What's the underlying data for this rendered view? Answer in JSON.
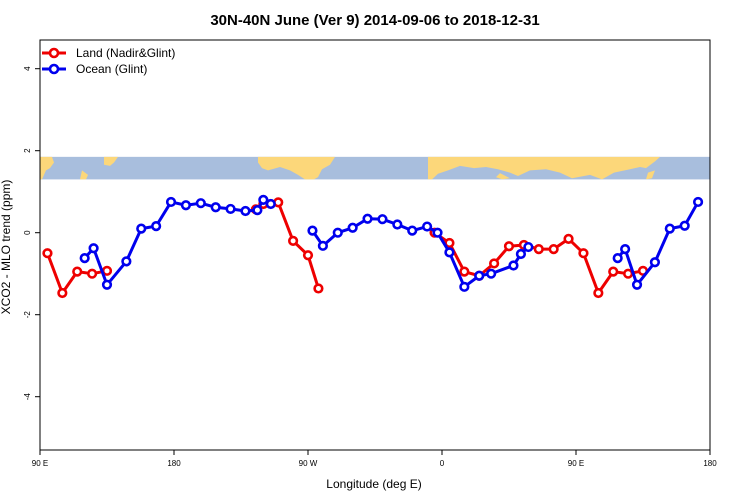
{
  "chart_data": {
    "type": "line",
    "title": "30N-40N June (Ver 9)   2014-09-06 to 2018-12-31",
    "xlabel": "Longitude (deg E)",
    "ylabel": "XCO2 - MLO trend (ppm)",
    "xlim": [
      90,
      540
    ],
    "ylim": [
      -5.3,
      4.7
    ],
    "x_ticks": [
      {
        "value": 90,
        "label": "90 E"
      },
      {
        "value": 180,
        "label": "180"
      },
      {
        "value": 270,
        "label": "90 W"
      },
      {
        "value": 360,
        "label": "0"
      },
      {
        "value": 450,
        "label": "90 E"
      },
      {
        "value": 540,
        "label": "180"
      }
    ],
    "y_ticks": [
      {
        "value": -4,
        "label": "-4"
      },
      {
        "value": -2,
        "label": "-2"
      },
      {
        "value": 0,
        "label": "0"
      },
      {
        "value": 2,
        "label": "2"
      },
      {
        "value": 4,
        "label": "4"
      }
    ],
    "legend": {
      "position": "top-left",
      "entries": [
        {
          "label": "Land (Nadir&Glint)",
          "color": "#ee0000"
        },
        {
          "label": "Ocean (Glint)",
          "color": "#0000ee"
        }
      ]
    },
    "map_strip": {
      "y_range": [
        1.3,
        1.85
      ],
      "land_color": "#fcd77a",
      "ocean_color": "#a8bedd"
    },
    "series": [
      {
        "name": "Land (Nadir&Glint)",
        "color": "#ee0000",
        "segments": [
          [
            [
              95,
              -0.5
            ],
            [
              105,
              -1.47
            ],
            [
              115,
              -0.95
            ],
            [
              125,
              -1.0
            ],
            [
              135,
              -0.93
            ]
          ],
          [
            [
              235,
              0.57
            ],
            [
              240,
              0.7
            ],
            [
              250,
              0.74
            ],
            [
              260,
              -0.2
            ],
            [
              270,
              -0.55
            ],
            [
              277,
              -1.36
            ]
          ],
          [
            [
              355,
              0.0
            ],
            [
              365,
              -0.25
            ],
            [
              375,
              -0.95
            ],
            [
              385,
              -1.05
            ],
            [
              395,
              -0.75
            ],
            [
              405,
              -0.33
            ],
            [
              415,
              -0.3
            ],
            [
              425,
              -0.4
            ],
            [
              435,
              -0.4
            ],
            [
              445,
              -0.15
            ],
            [
              455,
              -0.5
            ],
            [
              465,
              -1.47
            ],
            [
              475,
              -0.95
            ],
            [
              485,
              -1.0
            ],
            [
              495,
              -0.93
            ]
          ]
        ]
      },
      {
        "name": "Ocean (Glint)",
        "color": "#0000ee",
        "segments": [
          [
            [
              120,
              -0.62
            ],
            [
              126,
              -0.38
            ],
            [
              135,
              -1.27
            ],
            [
              148,
              -0.7
            ],
            [
              158,
              0.1
            ],
            [
              168,
              0.16
            ],
            [
              178,
              0.75
            ],
            [
              188,
              0.67
            ],
            [
              198,
              0.72
            ],
            [
              208,
              0.62
            ],
            [
              218,
              0.58
            ],
            [
              228,
              0.53
            ],
            [
              236,
              0.55
            ],
            [
              240,
              0.8
            ],
            [
              245,
              0.7
            ]
          ],
          [
            [
              273,
              0.05
            ],
            [
              280,
              -0.32
            ],
            [
              290,
              0.0
            ],
            [
              300,
              0.12
            ],
            [
              310,
              0.34
            ],
            [
              320,
              0.33
            ],
            [
              330,
              0.2
            ],
            [
              340,
              0.05
            ],
            [
              350,
              0.15
            ],
            [
              357,
              0.0
            ],
            [
              365,
              -0.48
            ],
            [
              375,
              -1.32
            ],
            [
              385,
              -1.05
            ],
            [
              393,
              -1.0
            ],
            [
              408,
              -0.8
            ],
            [
              413,
              -0.52
            ],
            [
              418,
              -0.35
            ]
          ],
          [
            [
              478,
              -0.62
            ],
            [
              483,
              -0.4
            ],
            [
              491,
              -1.27
            ],
            [
              503,
              -0.72
            ],
            [
              513,
              0.1
            ],
            [
              523,
              0.17
            ],
            [
              532,
              0.75
            ]
          ]
        ]
      }
    ]
  }
}
